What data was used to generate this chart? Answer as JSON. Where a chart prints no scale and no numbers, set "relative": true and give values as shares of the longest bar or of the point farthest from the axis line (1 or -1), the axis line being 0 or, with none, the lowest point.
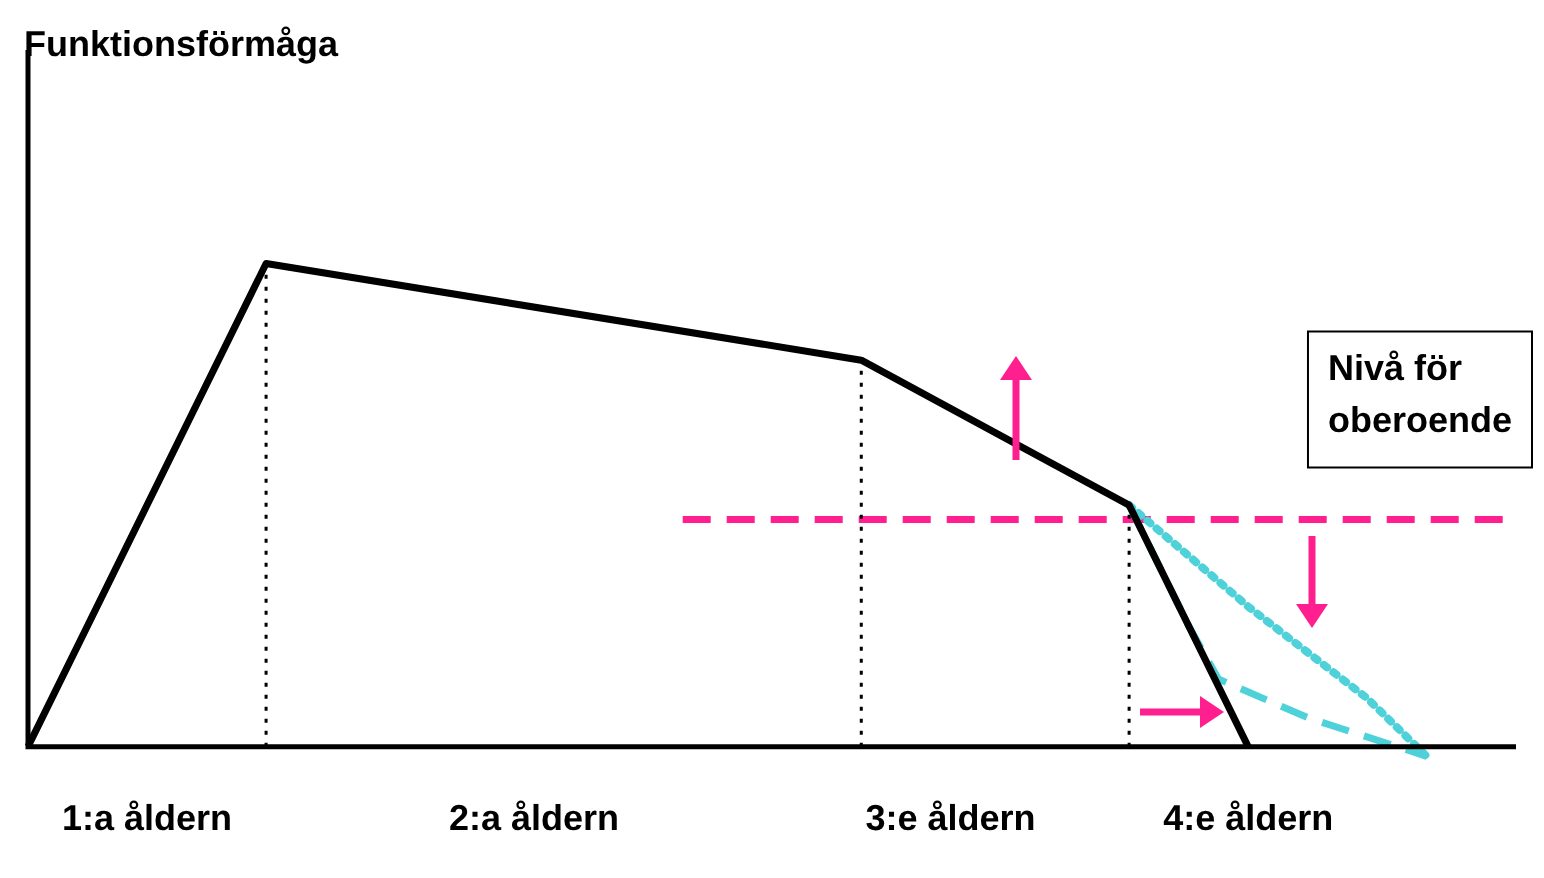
{
  "chart_data": {
    "type": "line",
    "relative": true,
    "annotations": [
      "Funktionsförmåga"
    ],
    "categories": [
      null,
      null,
      null,
      null,
      "1:a åldern",
      null,
      null,
      null,
      null,
      null,
      null,
      null,
      null,
      null,
      null,
      null,
      null,
      "2:a åldern",
      null,
      null,
      null,
      null,
      null,
      null,
      null,
      null,
      null,
      null,
      null,
      null,
      null,
      "3:e åldern",
      null,
      null,
      null,
      null,
      null,
      null,
      null,
      null,
      null,
      "4:e åldern",
      null,
      null,
      null,
      null,
      null,
      null,
      null,
      null,
      null
    ],
    "legend": false,
    "grid": false,
    "marker": "none",
    "series": [
      {
        "color": "#000000",
        "line_style": "solid",
        "values": [
          0,
          null,
          null,
          null,
          null,
          null,
          null,
          null,
          1,
          null,
          null,
          null,
          null,
          null,
          null,
          null,
          null,
          null,
          null,
          null,
          null,
          null,
          null,
          null,
          null,
          null,
          null,
          null,
          0.8,
          null,
          null,
          null,
          null,
          null,
          null,
          null,
          null,
          0.5,
          null,
          null,
          null,
          0,
          null,
          null,
          null,
          null,
          null,
          null,
          null,
          null,
          null
        ]
      },
      {
        "color": "#4fd1d9",
        "line_style": "dashed",
        "values": [
          null,
          null,
          null,
          null,
          null,
          null,
          null,
          null,
          null,
          null,
          null,
          null,
          null,
          null,
          null,
          null,
          null,
          null,
          null,
          null,
          null,
          null,
          null,
          null,
          null,
          null,
          null,
          null,
          null,
          null,
          null,
          null,
          null,
          null,
          null,
          null,
          null,
          0.5,
          null,
          0.25,
          0.14,
          null,
          null,
          0.06,
          null,
          null,
          null,
          -0.02,
          null,
          null,
          null
        ]
      },
      {
        "color": "#4fd1d9",
        "line_style": "dotted",
        "values": [
          null,
          null,
          null,
          null,
          null,
          null,
          null,
          null,
          null,
          null,
          null,
          null,
          null,
          null,
          null,
          null,
          null,
          null,
          null,
          null,
          null,
          null,
          null,
          null,
          null,
          null,
          null,
          null,
          null,
          null,
          null,
          null,
          null,
          null,
          null,
          null,
          null,
          0.5,
          null,
          null,
          null,
          0.29,
          null,
          null,
          null,
          0.1,
          null,
          -0.02,
          null,
          null,
          null
        ]
      },
      {
        "name": "Nivå för oberoende",
        "color": "#ff1f8f",
        "line_style": "dashed",
        "values": [
          null,
          null,
          null,
          null,
          null,
          null,
          null,
          null,
          null,
          null,
          null,
          null,
          null,
          null,
          null,
          null,
          null,
          null,
          null,
          null,
          null,
          null,
          0.47,
          null,
          null,
          null,
          null,
          null,
          null,
          null,
          null,
          null,
          null,
          null,
          null,
          null,
          null,
          null,
          null,
          null,
          null,
          null,
          null,
          null,
          null,
          null,
          null,
          null,
          null,
          null,
          0.47
        ]
      }
    ]
  }
}
